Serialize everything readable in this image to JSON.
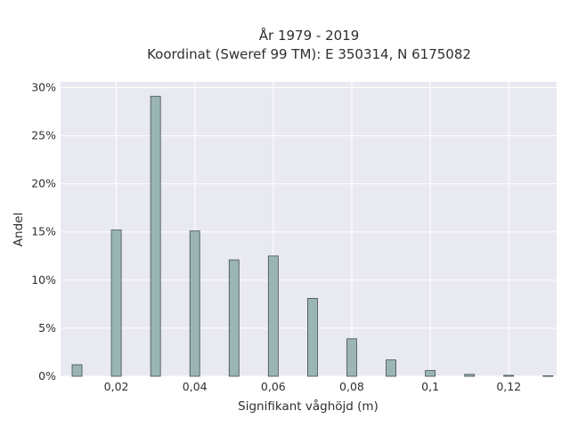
{
  "chart_data": {
    "type": "bar",
    "title": "År 1979 - 2019",
    "subtitle": "Koordinat (Sweref 99 TM): E 350314, N 6175082",
    "xlabel": "Signifikant våghöjd (m)",
    "ylabel": "Andel",
    "x_ticks": [
      {
        "value": 0.02,
        "label": "0,02"
      },
      {
        "value": 0.04,
        "label": "0,04"
      },
      {
        "value": 0.06,
        "label": "0,06"
      },
      {
        "value": 0.08,
        "label": "0,08"
      },
      {
        "value": 0.1,
        "label": "0,1"
      },
      {
        "value": 0.12,
        "label": "0,12"
      }
    ],
    "y_ticks": [
      {
        "value": 0,
        "label": "0%"
      },
      {
        "value": 5,
        "label": "5%"
      },
      {
        "value": 10,
        "label": "10%"
      },
      {
        "value": 15,
        "label": "15%"
      },
      {
        "value": 20,
        "label": "20%"
      },
      {
        "value": 25,
        "label": "25%"
      },
      {
        "value": 30,
        "label": "30%"
      }
    ],
    "xlim": [
      0.0058,
      0.1322
    ],
    "ylim": [
      0,
      30.6
    ],
    "grid": true,
    "bar_width": 0.0025,
    "x": [
      0.01,
      0.02,
      0.03,
      0.04,
      0.05,
      0.06,
      0.07,
      0.08,
      0.09,
      0.1,
      0.11,
      0.12,
      0.13
    ],
    "values": [
      1.2,
      15.2,
      29.1,
      15.1,
      12.1,
      12.5,
      8.1,
      3.9,
      1.7,
      0.6,
      0.2,
      0.1,
      0.05
    ],
    "unit": "%",
    "colors": {
      "bar_fill": "#9bb5b5",
      "bar_stroke": "#3f4f4f",
      "plot_bg": "#e9e9f1",
      "grid": "#ffffff"
    }
  }
}
